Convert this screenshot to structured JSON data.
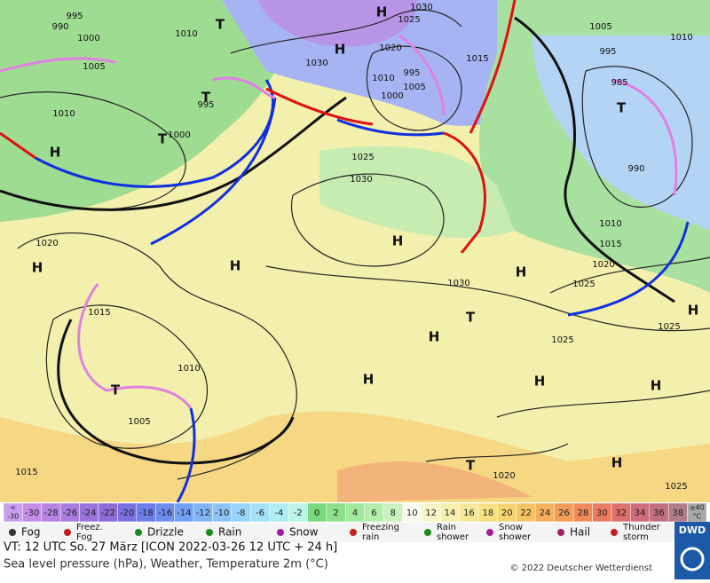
{
  "map": {
    "labels": [
      "H",
      "H",
      "H",
      "T",
      "T",
      "T",
      "T",
      "H",
      "H",
      "H",
      "H",
      "T",
      "H",
      "H",
      "H",
      "H",
      "H",
      "T",
      "T",
      "H",
      "995",
      "990",
      "1000",
      "1005",
      "1010",
      "1010",
      "1020",
      "1015",
      "1010",
      "1005",
      "1015",
      "1000",
      "995",
      "1030",
      "1030",
      "1025",
      "1030",
      "1025",
      "1025",
      "1020",
      "1015",
      "1010",
      "990",
      "985",
      "995",
      "1005",
      "1010",
      "1025",
      "1025",
      "1020",
      "1020",
      "1005",
      "1000",
      "995",
      "1010",
      "1015",
      "1030",
      "1025"
    ]
  },
  "scale": [
    {
      "lines": [
        "<",
        "-30"
      ],
      "color": "#c99ef0"
    },
    {
      "lines": [
        "-30"
      ],
      "color": "#c48ee8"
    },
    {
      "lines": [
        "-28"
      ],
      "color": "#b884e4"
    },
    {
      "lines": [
        "-26"
      ],
      "color": "#a87ce0"
    },
    {
      "lines": [
        "-24"
      ],
      "color": "#9a74dc"
    },
    {
      "lines": [
        "-22"
      ],
      "color": "#8c6cd8"
    },
    {
      "lines": [
        "-20"
      ],
      "color": "#7a70e0"
    },
    {
      "lines": [
        "-18"
      ],
      "color": "#6c7ce8"
    },
    {
      "lines": [
        "-16"
      ],
      "color": "#6c8cf0"
    },
    {
      "lines": [
        "-14"
      ],
      "color": "#74a0f4"
    },
    {
      "lines": [
        "-12"
      ],
      "color": "#80b4f8"
    },
    {
      "lines": [
        "-10"
      ],
      "color": "#8cc4fa"
    },
    {
      "lines": [
        "-8"
      ],
      "color": "#98d4fc"
    },
    {
      "lines": [
        "-6"
      ],
      "color": "#a4e0fa"
    },
    {
      "lines": [
        "-4"
      ],
      "color": "#b0ecf4"
    },
    {
      "lines": [
        "-2"
      ],
      "color": "#bcf4e8"
    },
    {
      "lines": [
        "0"
      ],
      "color": "#7cd87c"
    },
    {
      "lines": [
        "2"
      ],
      "color": "#8ce08c"
    },
    {
      "lines": [
        "4"
      ],
      "color": "#a0e89c"
    },
    {
      "lines": [
        "6"
      ],
      "color": "#b4eeac"
    },
    {
      "lines": [
        "8"
      ],
      "color": "#c8f2bc"
    },
    {
      "lines": [
        "10"
      ],
      "color": "#fafaf0"
    },
    {
      "lines": [
        "12"
      ],
      "color": "#f8f6c8"
    },
    {
      "lines": [
        "14"
      ],
      "color": "#f6f0b0"
    },
    {
      "lines": [
        "16"
      ],
      "color": "#f6e898"
    },
    {
      "lines": [
        "18"
      ],
      "color": "#f6e080"
    },
    {
      "lines": [
        "20"
      ],
      "color": "#f6d470"
    },
    {
      "lines": [
        "22"
      ],
      "color": "#f6c464"
    },
    {
      "lines": [
        "24"
      ],
      "color": "#f4b05c"
    },
    {
      "lines": [
        "26"
      ],
      "color": "#f29c58"
    },
    {
      "lines": [
        "28"
      ],
      "color": "#f08a58"
    },
    {
      "lines": [
        "30"
      ],
      "color": "#ec7a60"
    },
    {
      "lines": [
        "32"
      ],
      "color": "#e0706c"
    },
    {
      "lines": [
        "34"
      ],
      "color": "#d06c78"
    },
    {
      "lines": [
        "36"
      ],
      "color": "#c07080"
    },
    {
      "lines": [
        "38"
      ],
      "color": "#b07c88"
    },
    {
      "lines": [
        "≥40",
        "°C"
      ],
      "color": "#a8a8a8"
    }
  ],
  "legend": [
    {
      "lines": [
        "Fog"
      ]
    },
    {
      "lines": [
        "Freez.",
        "Fog"
      ]
    },
    {
      "lines": [
        "Drizzle"
      ]
    },
    {
      "lines": [
        "Rain"
      ]
    },
    {
      "lines": [
        "Snow"
      ]
    },
    {
      "lines": [
        "Freezing",
        "rain"
      ]
    },
    {
      "lines": [
        "Rain",
        "shower"
      ]
    },
    {
      "lines": [
        "Snow",
        "shower"
      ]
    },
    {
      "lines": [
        "Hail"
      ]
    },
    {
      "lines": [
        "Thunder",
        "storm"
      ]
    }
  ],
  "footer": {
    "valid": "VT: 12 UTC So.  27 März [ICON 2022-03-26  12 UTC + 24 h]",
    "subtitle": "Sea level pressure (hPa), Weather, Temperature 2m (°C)",
    "copyright": "© 2022 Deutscher Wetterdienst",
    "logo": "DWD"
  }
}
